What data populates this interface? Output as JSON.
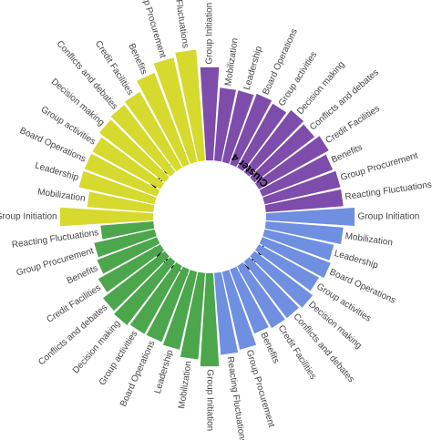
{
  "chart_data": {
    "type": "bar",
    "categories": [
      "Group Initiation",
      "Mobilization",
      "Leadership",
      "Board Operations",
      "Group activities",
      "Decision making",
      "Conflicts and debates",
      "Credit Facilities",
      "Benefits",
      "Group Procurement",
      "Reacting Fluctuations"
    ],
    "series": [
      {
        "name": "Cluster 1",
        "color": "#7e4cab",
        "values": [
          5.3,
          4.4,
          4.4,
          4.5,
          4.4,
          4.6,
          4.5,
          4.7,
          4.5,
          4.6,
          4.6
        ]
      },
      {
        "name": "Cluster 2",
        "color": "#6f8fe0",
        "values": [
          5.1,
          4.6,
          4.3,
          4.4,
          4.2,
          4.4,
          4.3,
          4.3,
          4.2,
          4.7,
          4.8
        ]
      },
      {
        "name": "Cluster 3",
        "color": "#4ca64c",
        "values": [
          5.3,
          5.0,
          4.7,
          4.6,
          4.6,
          4.7,
          4.6,
          4.3,
          4.0,
          3.9,
          3.5
        ]
      },
      {
        "name": "Cluster 4",
        "color": "#d6d92e",
        "values": [
          5.3,
          4.1,
          4.6,
          4.6,
          4.6,
          4.8,
          4.9,
          5.0,
          5.5,
          5.9,
          6.1
        ]
      }
    ],
    "title": "",
    "xlabel": "",
    "ylabel": "",
    "grid": false,
    "legend": "none"
  }
}
